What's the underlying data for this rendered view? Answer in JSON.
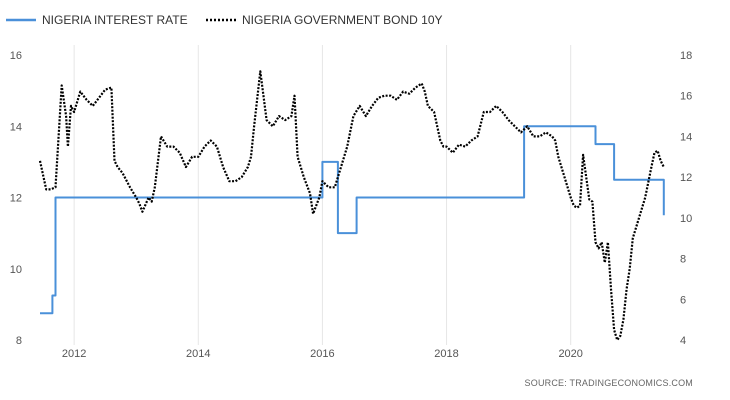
{
  "legend": {
    "series_a": "NIGERIA INTEREST RATE",
    "series_b": "NIGERIA GOVERNMENT BOND 10Y"
  },
  "source": "SOURCE:  TRADINGECONOMICS.COM",
  "colors": {
    "interest_rate": "#4a90d9",
    "bond": "#000000",
    "grid": "#e6e6e6"
  },
  "chart_data": {
    "type": "line",
    "title": "",
    "xlabel": "",
    "ylabel": "",
    "x_range": [
      2011.45,
      2021.6
    ],
    "x_ticks": [
      {
        "value": 2012,
        "label": "2012"
      },
      {
        "value": 2014,
        "label": "2014"
      },
      {
        "value": 2016,
        "label": "2016"
      },
      {
        "value": 2018,
        "label": "2018"
      },
      {
        "value": 2020,
        "label": "2020"
      }
    ],
    "y_left": {
      "range": [
        8,
        16
      ],
      "ticks": [
        8,
        10,
        12,
        14,
        16
      ]
    },
    "y_right": {
      "range": [
        4,
        18
      ],
      "ticks": [
        4,
        6,
        8,
        10,
        12,
        14,
        16,
        18
      ]
    },
    "grid": "vertical",
    "legend_position": "top-left",
    "series": [
      {
        "name": "NIGERIA INTEREST RATE",
        "axis": "left",
        "style": "solid",
        "step": true,
        "x": [
          2011.45,
          2011.6,
          2011.65,
          2011.7,
          2014.85,
          2016.0,
          2016.25,
          2016.55,
          2019.25,
          2020.4,
          2020.7,
          2021.5
        ],
        "y": [
          8.75,
          8.75,
          9.25,
          12.0,
          12.0,
          13.0,
          11.0,
          12.0,
          14.0,
          13.5,
          12.5,
          11.5
        ]
      },
      {
        "name": "NIGERIA GOVERNMENT BOND 10Y",
        "axis": "right",
        "style": "dotted",
        "x": [
          2011.45,
          2011.55,
          2011.62,
          2011.7,
          2011.8,
          2011.87,
          2011.9,
          2011.95,
          2012.0,
          2012.1,
          2012.2,
          2012.3,
          2012.4,
          2012.5,
          2012.6,
          2012.65,
          2012.7,
          2012.78,
          2012.9,
          2013.0,
          2013.05,
          2013.1,
          2013.2,
          2013.25,
          2013.3,
          2013.4,
          2013.5,
          2013.6,
          2013.7,
          2013.8,
          2013.9,
          2014.0,
          2014.1,
          2014.2,
          2014.3,
          2014.4,
          2014.5,
          2014.6,
          2014.7,
          2014.8,
          2014.85,
          2014.9,
          2015.0,
          2015.1,
          2015.2,
          2015.3,
          2015.4,
          2015.5,
          2015.55,
          2015.6,
          2015.7,
          2015.8,
          2015.85,
          2015.9,
          2015.95,
          2016.0,
          2016.1,
          2016.2,
          2016.3,
          2016.4,
          2016.5,
          2016.6,
          2016.7,
          2016.8,
          2016.9,
          2017.0,
          2017.1,
          2017.2,
          2017.3,
          2017.4,
          2017.5,
          2017.6,
          2017.65,
          2017.7,
          2017.8,
          2017.9,
          2017.95,
          2018.0,
          2018.1,
          2018.2,
          2018.3,
          2018.4,
          2018.5,
          2018.6,
          2018.7,
          2018.8,
          2018.9,
          2019.0,
          2019.1,
          2019.2,
          2019.3,
          2019.4,
          2019.5,
          2019.6,
          2019.7,
          2019.75,
          2019.8,
          2019.9,
          2020.0,
          2020.05,
          2020.1,
          2020.15,
          2020.2,
          2020.25,
          2020.3,
          2020.35,
          2020.4,
          2020.45,
          2020.5,
          2020.55,
          2020.6,
          2020.65,
          2020.7,
          2020.75,
          2020.8,
          2020.85,
          2020.9,
          2020.95,
          2021.0,
          2021.1,
          2021.2,
          2021.3,
          2021.35,
          2021.4,
          2021.45,
          2021.5
        ],
        "y": [
          12.8,
          11.4,
          11.4,
          11.5,
          16.5,
          15.0,
          13.5,
          15.5,
          15.2,
          16.2,
          15.8,
          15.5,
          15.9,
          16.3,
          16.4,
          12.8,
          12.5,
          12.2,
          11.5,
          11.0,
          10.7,
          10.3,
          11.0,
          10.8,
          11.5,
          14.0,
          13.5,
          13.5,
          13.2,
          12.5,
          13.0,
          13.0,
          13.5,
          13.8,
          13.5,
          12.5,
          11.8,
          11.8,
          12.0,
          12.5,
          13.0,
          14.5,
          17.2,
          14.8,
          14.5,
          15.0,
          14.8,
          15.0,
          16.0,
          13.0,
          12.0,
          11.2,
          10.2,
          10.6,
          11.0,
          11.8,
          11.5,
          11.5,
          12.5,
          13.5,
          15.0,
          15.5,
          15.0,
          15.5,
          15.9,
          16.0,
          16.0,
          15.8,
          16.2,
          16.1,
          16.4,
          16.6,
          16.2,
          15.5,
          15.2,
          13.8,
          13.5,
          13.5,
          13.2,
          13.6,
          13.5,
          13.8,
          14.0,
          15.2,
          15.2,
          15.5,
          15.2,
          14.8,
          14.5,
          14.2,
          14.5,
          14.0,
          14.0,
          14.2,
          14.0,
          13.8,
          13.0,
          12.0,
          11.0,
          10.6,
          10.5,
          10.6,
          13.1,
          12.0,
          10.9,
          10.8,
          8.8,
          8.5,
          8.8,
          7.8,
          8.8,
          6.5,
          4.5,
          4.0,
          4.2,
          5.0,
          6.5,
          7.5,
          9.0,
          10.0,
          11.0,
          12.5,
          13.2,
          13.3,
          12.8,
          12.5
        ]
      }
    ]
  }
}
